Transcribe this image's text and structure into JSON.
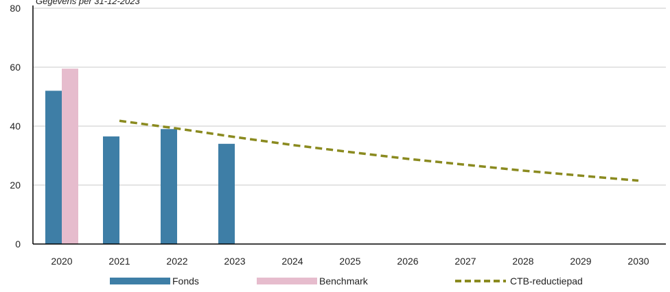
{
  "chart_data": {
    "type": "bar",
    "subtitle": "Gegevens per 31-12-2023",
    "categories": [
      "2020",
      "2021",
      "2022",
      "2023",
      "2024",
      "2025",
      "2026",
      "2027",
      "2028",
      "2029",
      "2030"
    ],
    "series": [
      {
        "name": "Fonds",
        "type": "bar",
        "color": "#3e7ea6",
        "values": [
          52,
          36.5,
          39,
          34,
          null,
          null,
          null,
          null,
          null,
          null,
          null
        ]
      },
      {
        "name": "Benchmark",
        "type": "bar",
        "color": "#e6bccd",
        "values": [
          59.5,
          null,
          null,
          null,
          null,
          null,
          null,
          null,
          null,
          null,
          null
        ]
      },
      {
        "name": "CTB-reductiepad",
        "type": "line",
        "style": "dashed",
        "color": "#8a8a1f",
        "values": [
          null,
          41.8,
          39.2,
          36.3,
          33.6,
          31.2,
          28.9,
          26.9,
          24.9,
          23.2,
          21.5
        ]
      }
    ],
    "ylim": [
      0,
      80
    ],
    "yticks": [
      0,
      20,
      40,
      60,
      80
    ],
    "grid": true,
    "legend_position": "bottom"
  }
}
